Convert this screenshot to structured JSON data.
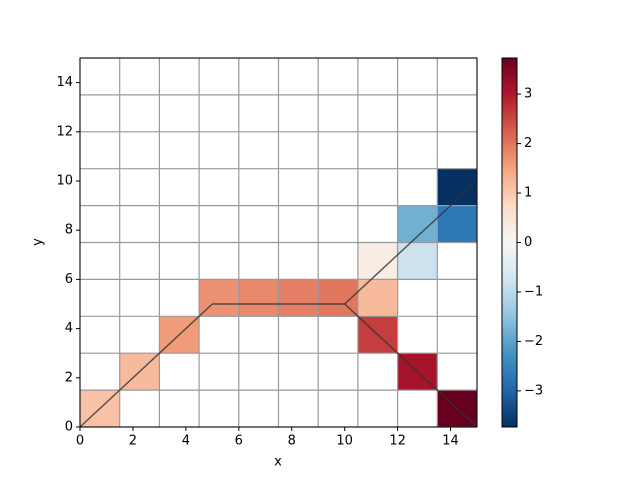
{
  "chart_data": {
    "type": "heatmap",
    "xlabel": "x",
    "ylabel": "y",
    "xlim": [
      0,
      15
    ],
    "ylim": [
      0,
      15
    ],
    "xticks": [
      0,
      2,
      4,
      6,
      8,
      10,
      12,
      14
    ],
    "yticks": [
      0,
      2,
      4,
      6,
      8,
      10,
      12,
      14
    ],
    "grid_edges": [
      0,
      1.5,
      3,
      4.5,
      6,
      7.5,
      9,
      10.5,
      12,
      13.5,
      15
    ],
    "colormap": "RdBu_r",
    "clim": [
      -3.73,
      3.73
    ],
    "cbar_ticks": [
      {
        "value": -3,
        "label": "−3"
      },
      {
        "value": -2,
        "label": "−2"
      },
      {
        "value": -1,
        "label": "−1"
      },
      0,
      1,
      2,
      3
    ],
    "cells": [
      {
        "x": [
          0,
          1.5
        ],
        "y": [
          0,
          1.5
        ],
        "value": 1.1
      },
      {
        "x": [
          1.5,
          3
        ],
        "y": [
          1.5,
          3
        ],
        "value": 1.2
      },
      {
        "x": [
          3,
          4.5
        ],
        "y": [
          3,
          4.5
        ],
        "value": 1.6
      },
      {
        "x": [
          4.5,
          6
        ],
        "y": [
          4.5,
          6
        ],
        "value": 1.7
      },
      {
        "x": [
          6,
          7.5
        ],
        "y": [
          4.5,
          6
        ],
        "value": 1.8
      },
      {
        "x": [
          7.5,
          9
        ],
        "y": [
          4.5,
          6
        ],
        "value": 1.9
      },
      {
        "x": [
          9,
          10.5
        ],
        "y": [
          4.5,
          6
        ],
        "value": 2.0
      },
      {
        "x": [
          10.5,
          12
        ],
        "y": [
          4.5,
          6
        ],
        "value": 1.2
      },
      {
        "x": [
          10.5,
          12
        ],
        "y": [
          6,
          7.5
        ],
        "value": 0.3
      },
      {
        "x": [
          12,
          13.5
        ],
        "y": [
          6,
          7.5
        ],
        "value": -0.8
      },
      {
        "x": [
          12,
          13.5
        ],
        "y": [
          7.5,
          9
        ],
        "value": -1.8
      },
      {
        "x": [
          13.5,
          15
        ],
        "y": [
          7.5,
          9
        ],
        "value": -2.7
      },
      {
        "x": [
          13.5,
          15
        ],
        "y": [
          9,
          10.5
        ],
        "value": -3.73
      },
      {
        "x": [
          10.5,
          12
        ],
        "y": [
          3,
          4.5
        ],
        "value": 2.6
      },
      {
        "x": [
          12,
          13.5
        ],
        "y": [
          1.5,
          3
        ],
        "value": 3.1
      },
      {
        "x": [
          13.5,
          15
        ],
        "y": [
          0,
          1.5
        ],
        "value": 3.73
      }
    ],
    "lines": [
      {
        "x": [
          0,
          5,
          10,
          15
        ],
        "y": [
          0,
          5,
          5,
          0
        ],
        "color": "#333333"
      },
      {
        "x": [
          10,
          15
        ],
        "y": [
          5,
          10
        ],
        "color": "#333333"
      }
    ]
  }
}
